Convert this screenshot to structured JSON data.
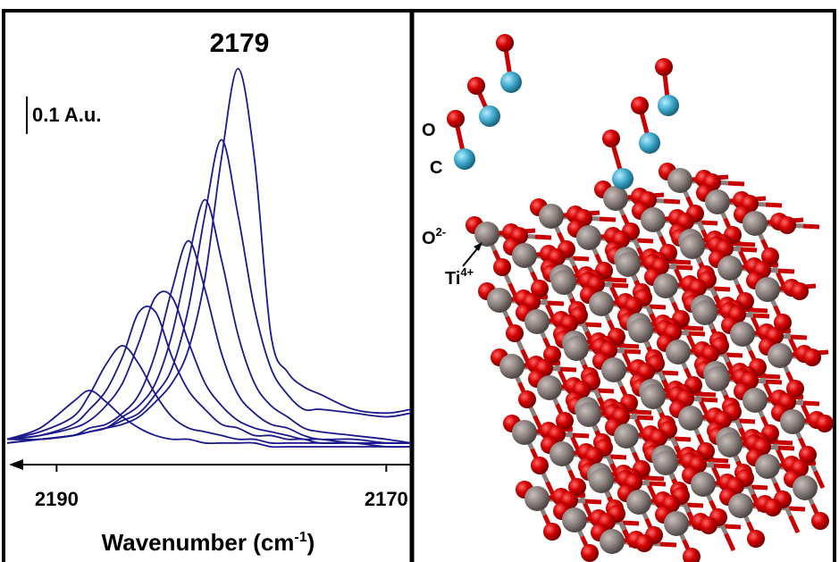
{
  "chart_data": {
    "type": "line",
    "annotation": "2179",
    "scale_bar": {
      "value": 0.1,
      "label": "0.1 A.u."
    },
    "xlabel": "Wavenumber (cm",
    "xlabel_sup": "-1",
    "xlabel_end": ")",
    "x": [
      2193,
      2191,
      2189,
      2188,
      2187,
      2186,
      2185,
      2184,
      2183,
      2182,
      2181,
      2180,
      2179,
      2178,
      2177,
      2176,
      2175,
      2174,
      2172,
      2170,
      2168.5
    ],
    "xlim": [
      2193,
      2168.5
    ],
    "xticks": [
      2190,
      2170
    ],
    "ylim": [
      0,
      1.16
    ],
    "series": [
      {
        "color": "#1a1a8c",
        "values": [
          0.02,
          0.05,
          0.12,
          0.15,
          0.12,
          0.08,
          0.05,
          0.03,
          0.02,
          0.02,
          0.01,
          0.01,
          0.01,
          0.01,
          0,
          0,
          0,
          0,
          0,
          0,
          0
        ]
      },
      {
        "color": "#1a1a8c",
        "values": [
          0.02,
          0.04,
          0.08,
          0.14,
          0.22,
          0.27,
          0.22,
          0.14,
          0.08,
          0.05,
          0.04,
          0.03,
          0.02,
          0.02,
          0.01,
          0.01,
          0.01,
          0.01,
          0.01,
          0,
          0
        ]
      },
      {
        "color": "#1a1a8c",
        "values": [
          0.02,
          0.03,
          0.06,
          0.1,
          0.15,
          0.24,
          0.36,
          0.36,
          0.24,
          0.15,
          0.1,
          0.06,
          0.05,
          0.03,
          0.03,
          0.02,
          0.02,
          0.01,
          0.01,
          0.01,
          0.01
        ]
      },
      {
        "color": "#1a1a8c",
        "values": [
          0.02,
          0.03,
          0.05,
          0.07,
          0.11,
          0.17,
          0.28,
          0.4,
          0.4,
          0.28,
          0.17,
          0.11,
          0.07,
          0.05,
          0.04,
          0.03,
          0.02,
          0.02,
          0.01,
          0.01,
          0.01
        ]
      },
      {
        "color": "#1a1a8c",
        "values": [
          0.01,
          0.02,
          0.03,
          0.05,
          0.06,
          0.09,
          0.14,
          0.25,
          0.42,
          0.55,
          0.42,
          0.25,
          0.14,
          0.09,
          0.06,
          0.05,
          0.03,
          0.02,
          0.02,
          0.01,
          0.01
        ]
      },
      {
        "color": "#1a1a8c",
        "values": [
          0.01,
          0.02,
          0.03,
          0.04,
          0.05,
          0.08,
          0.11,
          0.17,
          0.3,
          0.5,
          0.66,
          0.5,
          0.3,
          0.17,
          0.11,
          0.08,
          0.05,
          0.04,
          0.03,
          0.02,
          0.01
        ]
      },
      {
        "color": "#1a1a8c",
        "values": [
          0.02,
          0.02,
          0.03,
          0.04,
          0.05,
          0.07,
          0.09,
          0.14,
          0.21,
          0.37,
          0.62,
          0.82,
          0.62,
          0.37,
          0.21,
          0.14,
          0.1,
          0.1,
          0.09,
          0.08,
          0.09
        ]
      },
      {
        "color": "#1a1a8c",
        "values": [
          0.02,
          0.02,
          0.03,
          0.04,
          0.05,
          0.06,
          0.08,
          0.12,
          0.17,
          0.26,
          0.45,
          0.77,
          1.01,
          0.77,
          0.3,
          0.2,
          0.16,
          0.14,
          0.1,
          0.09,
          0.1
        ]
      }
    ]
  },
  "structure_labels": {
    "o": "O",
    "c": "C",
    "oxide": "O",
    "oxide_charge": "2-",
    "ti": "Ti",
    "ti_charge": "4+"
  }
}
